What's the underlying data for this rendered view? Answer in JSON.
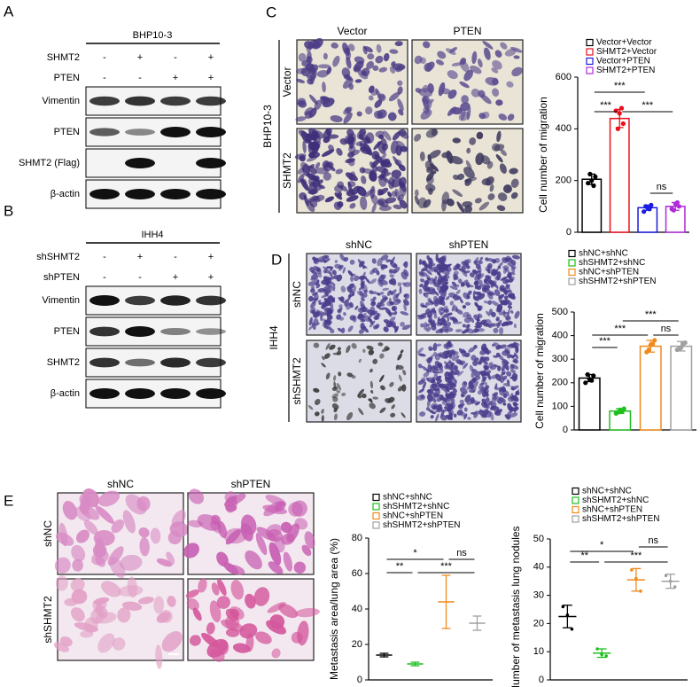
{
  "panel_a": {
    "letter": "A",
    "cell_line": "BHP10-3",
    "conditions": [
      {
        "label": "SHMT2",
        "signs": [
          "-",
          "+",
          "-",
          "+"
        ]
      },
      {
        "label": "PTEN",
        "signs": [
          "-",
          "-",
          "+",
          "+"
        ]
      }
    ],
    "bands": [
      "Vimentin",
      "PTEN",
      "SHMT2 (Flag)",
      "β-actin"
    ]
  },
  "panel_b": {
    "letter": "B",
    "cell_line": "IHH4",
    "conditions": [
      {
        "label": "shSHMT2",
        "signs": [
          "-",
          "+",
          "-",
          "+"
        ]
      },
      {
        "label": "shPTEN",
        "signs": [
          "-",
          "-",
          "+",
          "+"
        ]
      }
    ],
    "bands": [
      "Vimentin",
      "PTEN",
      "SHMT2",
      "β-actin"
    ]
  },
  "panel_c": {
    "letter": "C",
    "side": "BHP10-3",
    "columns": [
      "Vector",
      "PTEN"
    ],
    "rows": [
      "Vector",
      "SHMT2"
    ]
  },
  "panel_d": {
    "letter": "D",
    "side": "IHH4",
    "columns": [
      "shNC",
      "shPTEN"
    ],
    "rows": [
      "shNC",
      "shSHMT2"
    ]
  },
  "panel_e": {
    "letter": "E",
    "columns": [
      "shNC",
      "shPTEN"
    ],
    "rows": [
      "shNC",
      "shSHMT2"
    ]
  },
  "chart_data": [
    {
      "type": "bar",
      "ylabel": "Cell number of migration",
      "ylim": [
        0,
        600
      ],
      "yticks": [
        0,
        200,
        400,
        600
      ],
      "annotations": [
        "***",
        "***",
        "***",
        "ns"
      ],
      "series": [
        {
          "name": "Vector+Vector",
          "color": "#000000",
          "values": [
            205
          ],
          "errors": [
            20
          ],
          "points": [
            190,
            200,
            215,
            225,
            180
          ]
        },
        {
          "name": "SHMT2+Vector",
          "color": "#e8101a",
          "values": [
            440
          ],
          "errors": [
            35
          ],
          "points": [
            470,
            460,
            420,
            400,
            480
          ]
        },
        {
          "name": "Vector+PTEN",
          "color": "#1a1ae0",
          "values": [
            95
          ],
          "errors": [
            10
          ],
          "points": [
            80,
            95,
            105,
            100,
            90
          ]
        },
        {
          "name": "SHMT2+PTEN",
          "color": "#b02ad8",
          "values": [
            100
          ],
          "errors": [
            15
          ],
          "points": [
            90,
            110,
            100,
            85,
            115
          ]
        }
      ]
    },
    {
      "type": "bar",
      "ylabel": "Cell number of migration",
      "ylim": [
        0,
        500
      ],
      "yticks": [
        0,
        100,
        200,
        300,
        400,
        500
      ],
      "annotations": [
        "***",
        "***",
        "***",
        "ns"
      ],
      "series": [
        {
          "name": "shNC+shNC",
          "color": "#000000",
          "values": [
            220
          ],
          "errors": [
            15
          ],
          "points": [
            200,
            215,
            230,
            235,
            210
          ]
        },
        {
          "name": "shSHMT2+shNC",
          "color": "#1fbf1f",
          "values": [
            80
          ],
          "errors": [
            10
          ],
          "points": [
            70,
            85,
            90,
            75,
            80
          ]
        },
        {
          "name": "shNC+shPTEN",
          "color": "#f08a1c",
          "values": [
            355
          ],
          "errors": [
            25
          ],
          "points": [
            330,
            360,
            380,
            340,
            365
          ]
        },
        {
          "name": "shSHMT2+shPTEN",
          "color": "#a0a0a0",
          "values": [
            355
          ],
          "errors": [
            20
          ],
          "points": [
            340,
            350,
            370,
            345,
            365
          ]
        }
      ]
    },
    {
      "type": "dot",
      "ylabel": "Metastasis area/lung area (%)",
      "ylim": [
        0,
        80
      ],
      "yticks": [
        0,
        20,
        40,
        60,
        80
      ],
      "annotations": [
        "*",
        "**",
        "***",
        "ns"
      ],
      "series": [
        {
          "name": "shNC+shNC",
          "color": "#000000",
          "values": [
            14
          ],
          "errors": [
            1
          ]
        },
        {
          "name": "shSHMT2+shNC",
          "color": "#1fbf1f",
          "values": [
            9
          ],
          "errors": [
            1
          ]
        },
        {
          "name": "shNC+shPTEN",
          "color": "#f08a1c",
          "values": [
            44
          ],
          "errors": [
            15
          ]
        },
        {
          "name": "shSHMT2+shPTEN",
          "color": "#a0a0a0",
          "values": [
            32
          ],
          "errors": [
            4
          ]
        }
      ]
    },
    {
      "type": "dot",
      "ylabel": "Number of metastasis lung nodules",
      "ylim": [
        0,
        50
      ],
      "yticks": [
        0,
        10,
        20,
        30,
        40,
        50
      ],
      "annotations": [
        "*",
        "**",
        "***",
        "ns"
      ],
      "series": [
        {
          "name": "shNC+shNC",
          "color": "#000000",
          "values": [
            22.5
          ],
          "errors": [
            4
          ],
          "points": [
            26,
            23,
            18
          ]
        },
        {
          "name": "shSHMT2+shNC",
          "color": "#1fbf1f",
          "values": [
            9.5
          ],
          "errors": [
            1.5
          ],
          "points": [
            11,
            9,
            8.5
          ]
        },
        {
          "name": "shNC+shPTEN",
          "color": "#f08a1c",
          "values": [
            35.5
          ],
          "errors": [
            4
          ],
          "points": [
            39,
            36,
            31.5
          ]
        },
        {
          "name": "shSHMT2+shPTEN",
          "color": "#a0a0a0",
          "values": [
            35
          ],
          "errors": [
            2.5
          ],
          "points": [
            37,
            35,
            33
          ]
        }
      ]
    }
  ]
}
